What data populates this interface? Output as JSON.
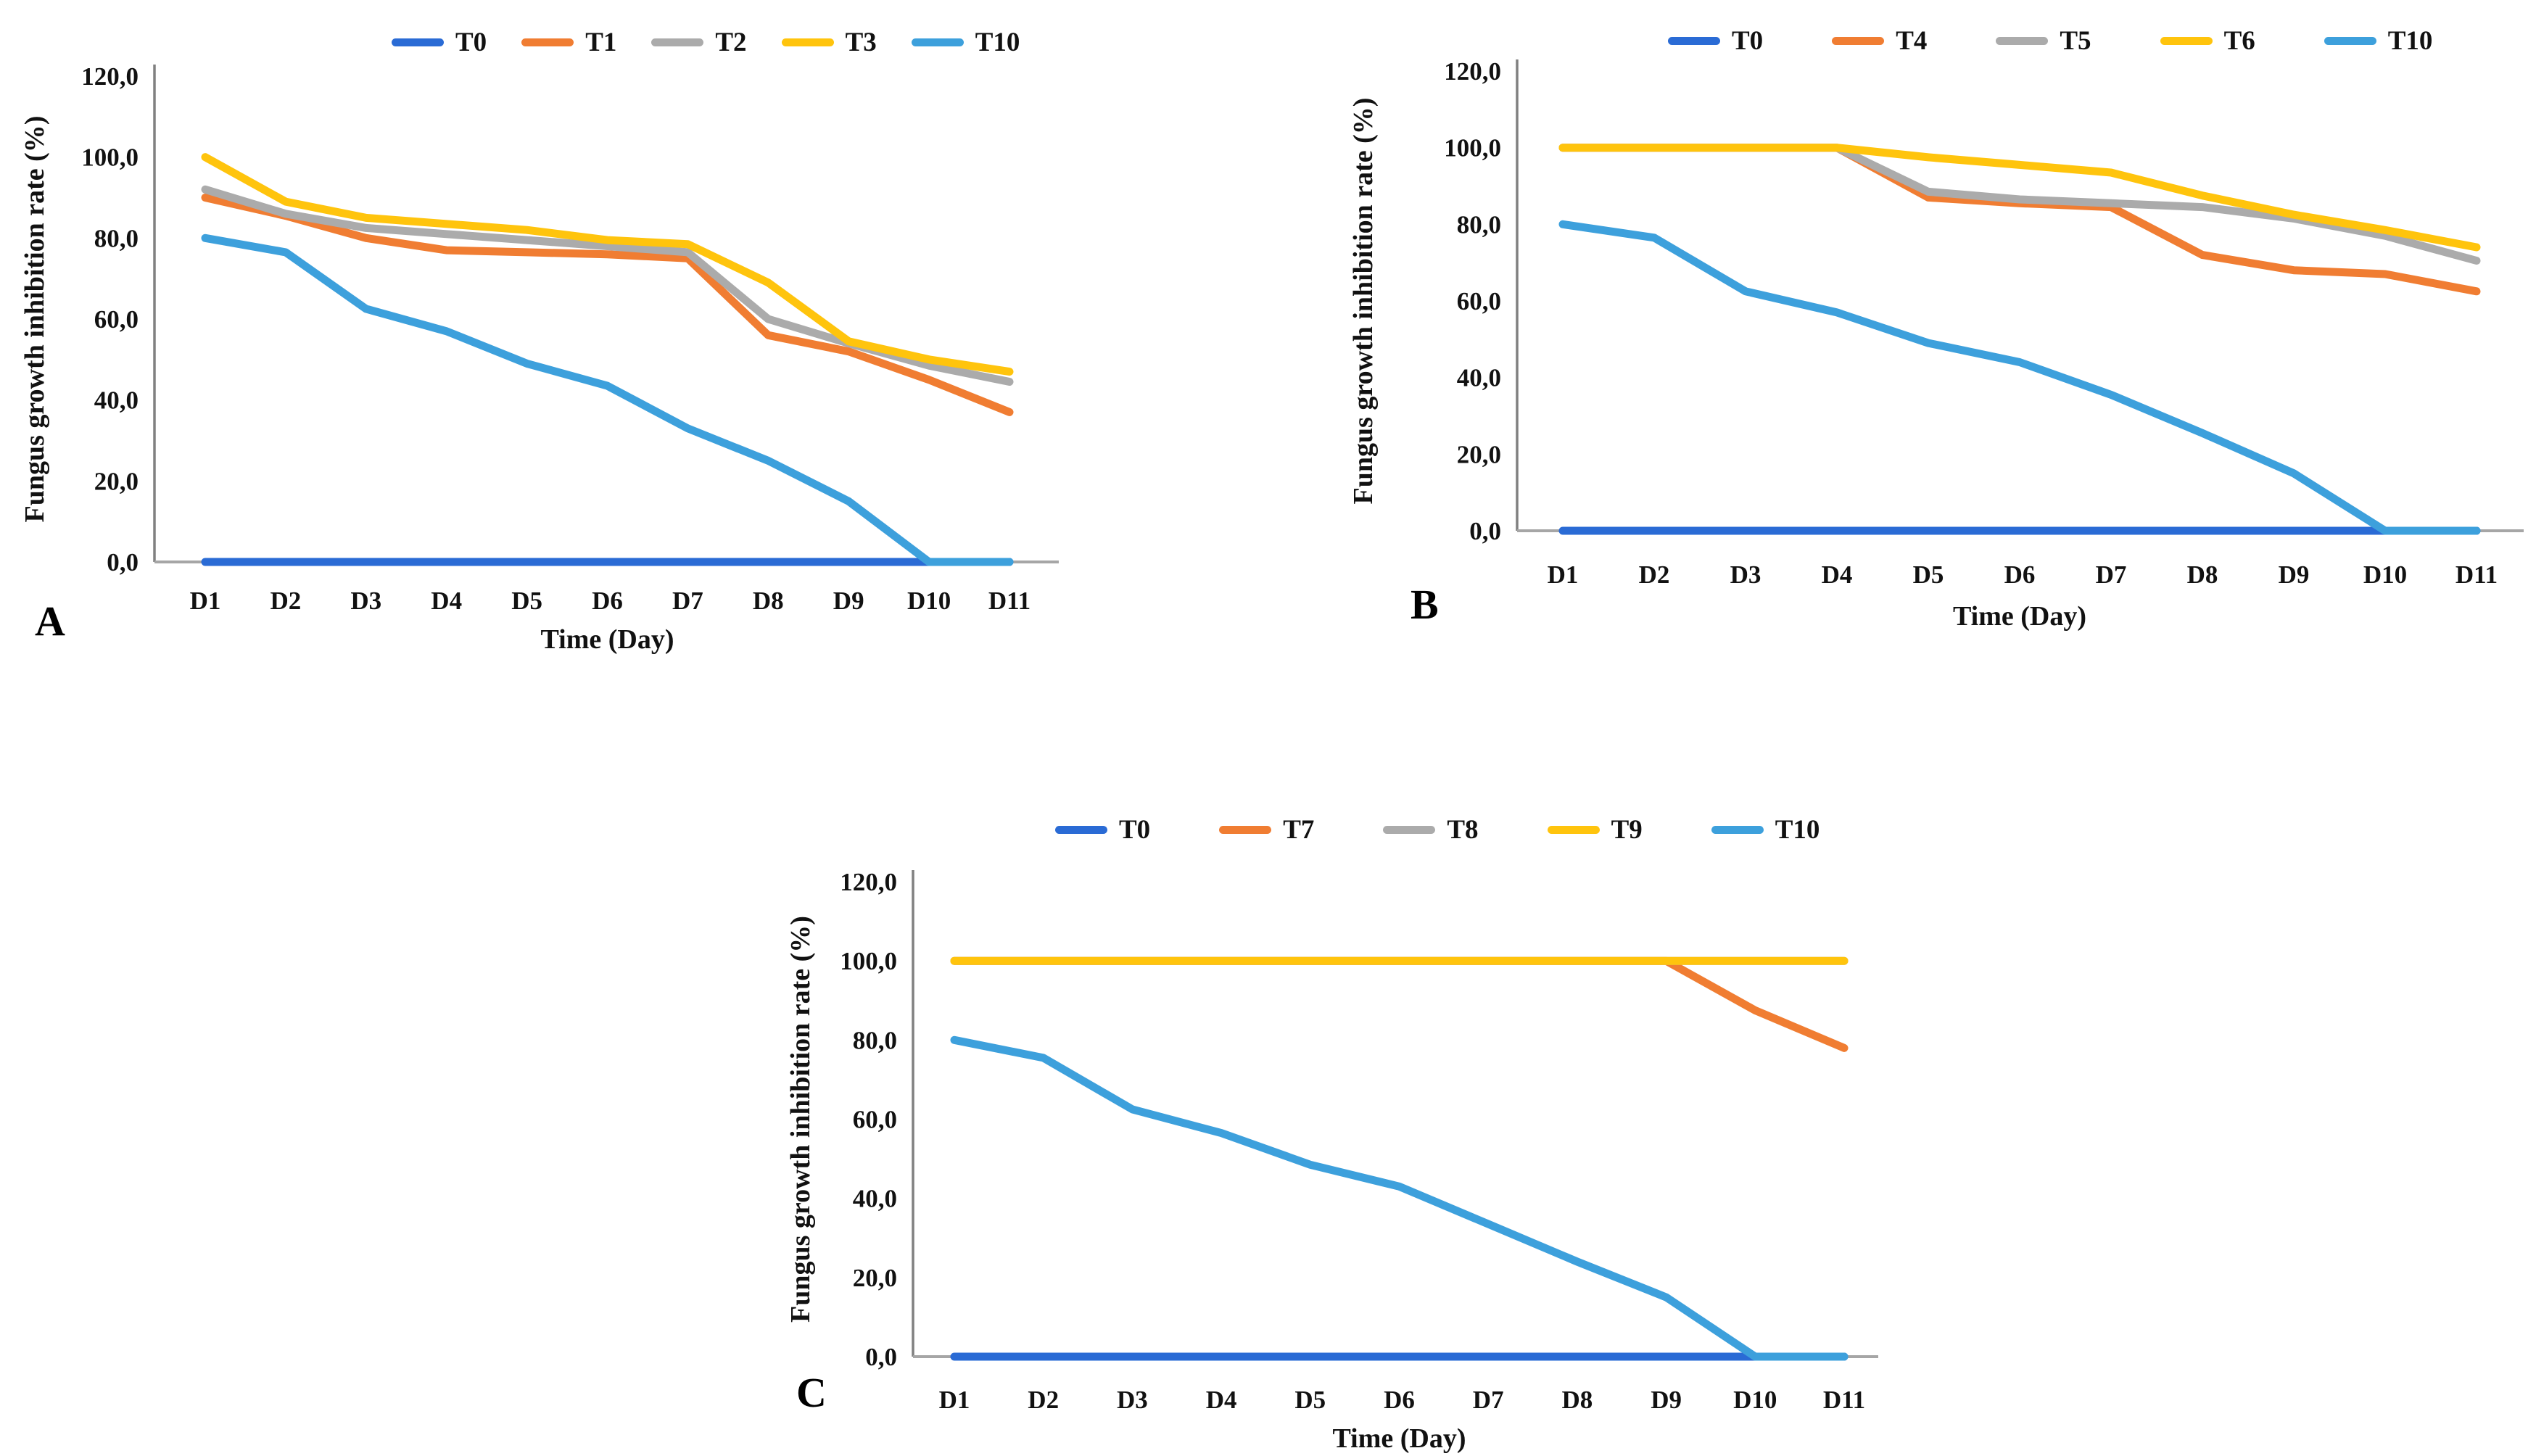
{
  "figure": {
    "background": "#ffffff",
    "y_axis_color": "#808080",
    "x_axis_color": "#a6a6a6",
    "series_colors": {
      "blue": "#2a6bd5",
      "orange": "#f07d32",
      "gray": "#ababab",
      "yellow": "#ffc40d",
      "light_blue": "#3da0dc"
    }
  },
  "chart_data": [
    {
      "type": "line",
      "panel": "A",
      "xlabel": "Time (Day)",
      "ylabel": "Fungus growth inhibition rate (%)",
      "ylim": [
        0,
        120
      ],
      "grid": false,
      "legend_position": "top",
      "y_ticks": [
        "0,0",
        "20,0",
        "40,0",
        "60,0",
        "80,0",
        "100,0",
        "120,0"
      ],
      "x": [
        "D1",
        "D2",
        "D3",
        "D4",
        "D5",
        "D6",
        "D7",
        "D8",
        "D9",
        "D10",
        "D11"
      ],
      "series": [
        {
          "name": "T0",
          "color": "#2a6bd5",
          "values": [
            0,
            0,
            0,
            0,
            0,
            0,
            0,
            0,
            0,
            0,
            0
          ]
        },
        {
          "name": "T1",
          "color": "#f07d32",
          "values": [
            90,
            85.5,
            80,
            77,
            76.5,
            76,
            75,
            56,
            52,
            45,
            37
          ]
        },
        {
          "name": "T2",
          "color": "#ababab",
          "values": [
            92,
            86,
            82.5,
            81,
            79.5,
            78,
            76.5,
            60,
            54,
            48.5,
            44.5
          ]
        },
        {
          "name": "T3",
          "color": "#ffc40d",
          "values": [
            100,
            89,
            85,
            83.5,
            82,
            79.5,
            78.5,
            69,
            54.5,
            50,
            47
          ]
        },
        {
          "name": "T10",
          "color": "#3da0dc",
          "values": [
            80,
            76.5,
            62.5,
            57,
            49,
            43.5,
            33,
            25,
            15,
            0,
            0
          ]
        }
      ]
    },
    {
      "type": "line",
      "panel": "B",
      "xlabel": "Time (Day)",
      "ylabel": "Fungus growth inhibition rate (%)",
      "ylim": [
        0,
        120
      ],
      "grid": false,
      "legend_position": "top",
      "y_ticks": [
        "0,0",
        "20,0",
        "40,0",
        "60,0",
        "80,0",
        "100,0",
        "120,0"
      ],
      "x": [
        "D1",
        "D2",
        "D3",
        "D4",
        "D5",
        "D6",
        "D7",
        "D8",
        "D9",
        "D10",
        "D11"
      ],
      "series": [
        {
          "name": "T0",
          "color": "#2a6bd5",
          "values": [
            0,
            0,
            0,
            0,
            0,
            0,
            0,
            0,
            0,
            0,
            0
          ]
        },
        {
          "name": "T4",
          "color": "#f07d32",
          "values": [
            100,
            100,
            100,
            100,
            87,
            85.5,
            84.5,
            72,
            68,
            67,
            62.5
          ]
        },
        {
          "name": "T5",
          "color": "#ababab",
          "values": [
            100,
            100,
            100,
            100,
            88.5,
            86.5,
            85.5,
            84.5,
            81.5,
            77,
            70.5
          ]
        },
        {
          "name": "T6",
          "color": "#ffc40d",
          "values": [
            100,
            100,
            100,
            100,
            97.5,
            95.5,
            93.5,
            87.5,
            82.5,
            78.5,
            74
          ]
        },
        {
          "name": "T10",
          "color": "#3da0dc",
          "values": [
            80,
            76.5,
            62.5,
            57,
            49,
            44,
            35.5,
            25.5,
            15,
            0,
            0
          ]
        }
      ]
    },
    {
      "type": "line",
      "panel": "C",
      "xlabel": "Time (Day)",
      "ylabel": "Fungus growth inhibition rate (%)",
      "ylim": [
        0,
        120
      ],
      "grid": false,
      "legend_position": "top",
      "y_ticks": [
        "0,0",
        "20,0",
        "40,0",
        "60,0",
        "80,0",
        "100,0",
        "120,0"
      ],
      "x": [
        "D1",
        "D2",
        "D3",
        "D4",
        "D5",
        "D6",
        "D7",
        "D8",
        "D9",
        "D10",
        "D11"
      ],
      "series": [
        {
          "name": "T0",
          "color": "#2a6bd5",
          "values": [
            0,
            0,
            0,
            0,
            0,
            0,
            0,
            0,
            0,
            0,
            0
          ]
        },
        {
          "name": "T7",
          "color": "#f07d32",
          "values": [
            100,
            100,
            100,
            100,
            100,
            100,
            100,
            100,
            100,
            87.5,
            78
          ]
        },
        {
          "name": "T8",
          "color": "#ababab",
          "values": [
            100,
            100,
            100,
            100,
            100,
            100,
            100,
            100,
            100,
            100,
            100
          ]
        },
        {
          "name": "T9",
          "color": "#ffc40d",
          "values": [
            100,
            100,
            100,
            100,
            100,
            100,
            100,
            100,
            100,
            100,
            100
          ]
        },
        {
          "name": "T10",
          "color": "#3da0dc",
          "values": [
            80,
            75.5,
            62.5,
            56.5,
            48.5,
            43,
            33.5,
            24,
            15,
            0,
            0
          ]
        }
      ]
    }
  ]
}
